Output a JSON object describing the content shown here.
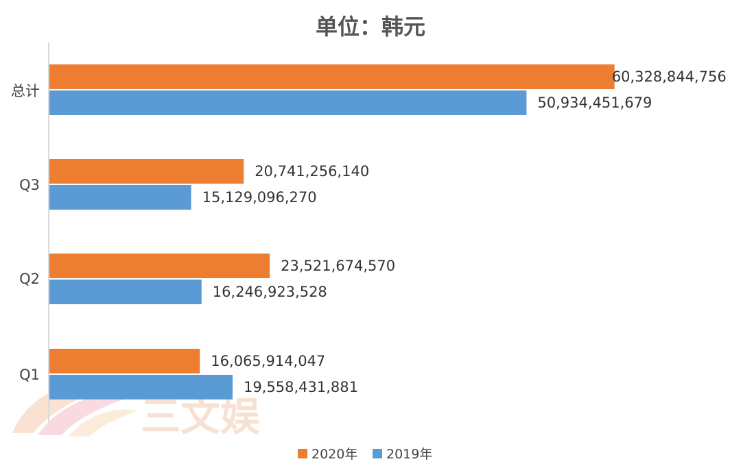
{
  "chart_data": {
    "type": "bar",
    "orientation": "horizontal",
    "title": "单位：韩元",
    "categories": [
      "总计",
      "Q3",
      "Q2",
      "Q1"
    ],
    "series": [
      {
        "name": "2020年",
        "color": "#ed7d31",
        "values": [
          60328844756,
          20741256140,
          23521674570,
          16065914047
        ],
        "labels": [
          "60,328,844,756",
          "20,741,256,140",
          "23,521,674,570",
          "16,065,914,047"
        ]
      },
      {
        "name": "2019年",
        "color": "#5b9bd5",
        "values": [
          50934451679,
          15129096270,
          16246923528,
          19558431881
        ],
        "labels": [
          "50,934,451,679",
          "15,129,096,270",
          "16,246,923,528",
          "19,558,431,881"
        ]
      }
    ],
    "xlim": [
      0,
      72000000000
    ],
    "grid": false,
    "legend_position": "bottom",
    "axis_color": "#d9d9d9"
  },
  "watermark": {
    "text": "三文娱",
    "color": "#f3c9b0"
  }
}
